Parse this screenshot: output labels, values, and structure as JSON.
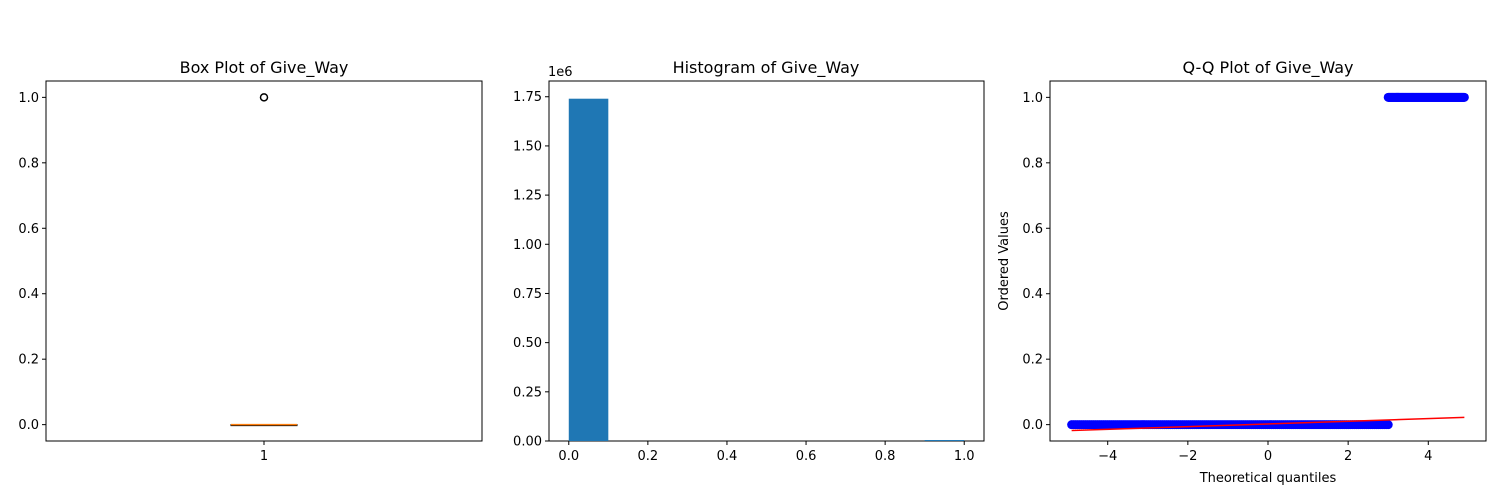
{
  "chart_data": [
    {
      "type": "box",
      "title": "Box Plot of Give_Way",
      "xlabel": "",
      "ylabel": "",
      "categories": [
        "1"
      ],
      "ylim": [
        -0.05,
        1.05
      ],
      "yticks": [
        0.0,
        0.2,
        0.4,
        0.6,
        0.8,
        1.0
      ],
      "ytick_labels": [
        "0.0",
        "0.2",
        "0.4",
        "0.6",
        "0.8",
        "1.0"
      ],
      "box": {
        "q1": 0.0,
        "median": 0.0,
        "q3": 0.0,
        "whisker_low": 0.0,
        "whisker_high": 0.0
      },
      "outliers": [
        1.0
      ],
      "colors": {
        "median": "#ff7f0e",
        "box": "#000000"
      }
    },
    {
      "type": "bar",
      "title": "Histogram of Give_Way",
      "xlabel": "",
      "ylabel": "",
      "offset_text": "1e6",
      "bins": [
        {
          "x0": 0.0,
          "x1": 0.1,
          "count": 1.74
        },
        {
          "x0": 0.9,
          "x1": 1.0,
          "count": 0.003
        }
      ],
      "xlim": [
        -0.05,
        1.05
      ],
      "ylim": [
        0,
        1.83
      ],
      "xticks": [
        0.0,
        0.2,
        0.4,
        0.6,
        0.8,
        1.0
      ],
      "xtick_labels": [
        "0.0",
        "0.2",
        "0.4",
        "0.6",
        "0.8",
        "1.0"
      ],
      "yticks": [
        0.0,
        0.25,
        0.5,
        0.75,
        1.0,
        1.25,
        1.5,
        1.75
      ],
      "ytick_labels": [
        "0.00",
        "0.25",
        "0.50",
        "0.75",
        "1.00",
        "1.25",
        "1.50",
        "1.75"
      ],
      "colors": {
        "bar": "#1f77b4"
      }
    },
    {
      "type": "scatter",
      "title": "Q-Q Plot of Give_Way",
      "xlabel": "Theoretical quantiles",
      "ylabel": "Ordered Values",
      "xlim": [
        -5.44,
        5.44
      ],
      "ylim": [
        -0.05,
        1.05
      ],
      "xticks": [
        -4,
        -2,
        0,
        2,
        4
      ],
      "xtick_labels": [
        "−4",
        "−2",
        "0",
        "2",
        "4"
      ],
      "yticks": [
        0.0,
        0.2,
        0.4,
        0.6,
        0.8,
        1.0
      ],
      "ytick_labels": [
        "0.0",
        "0.2",
        "0.4",
        "0.6",
        "0.8",
        "1.0"
      ],
      "points": {
        "y0_x_range": [
          -4.9,
          3.0
        ],
        "y1_x_range": [
          3.0,
          4.9
        ]
      },
      "fit_line": {
        "x": [
          -4.9,
          4.9
        ],
        "y": [
          -0.018,
          0.022
        ]
      },
      "colors": {
        "points": "#0000ff",
        "line": "#ff0000"
      }
    }
  ]
}
